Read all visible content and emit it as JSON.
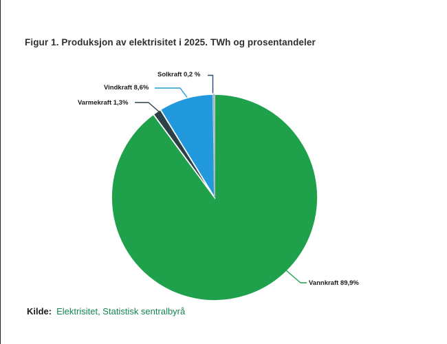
{
  "figure": {
    "title": "Figur 1. Produksjon av elektrisitet i 2025. TWh og prosentandeler",
    "source_prefix": "Kilde:",
    "source_text": "Elektrisitet, Statistisk sentralbyrå"
  },
  "colors": {
    "background": "#FFFFFF",
    "title_text": "#2E2E2E",
    "label_text": "#1A1A1A",
    "source_link": "#13854E",
    "frame_left_border": "#1C2834",
    "slice_gap": "#FFFFFF"
  },
  "chart_data": {
    "type": "pie",
    "title": "Figur 1. Produksjon av elektrisitet i 2025. TWh og prosentandeler",
    "unit": "percent",
    "start_angle_deg": 0,
    "direction": "clockwise",
    "legend_position": "none",
    "labels_style": "callout",
    "slices": [
      {
        "name": "Vannkraft",
        "value": 89.9,
        "label": "Vannkraft 89,9%",
        "color": "#1FA04A"
      },
      {
        "name": "Varmekraft",
        "value": 1.3,
        "label": "Varmekraft 1,3%",
        "color": "#2C4048"
      },
      {
        "name": "Vindkraft",
        "value": 8.6,
        "label": "Vindkraft 8,6%",
        "color": "#2199DC"
      },
      {
        "name": "Solkraft",
        "value": 0.2,
        "label": "Solkraft 0,2 %",
        "color": "#A9B4BC",
        "callout_color": "#2E4779"
      }
    ]
  }
}
